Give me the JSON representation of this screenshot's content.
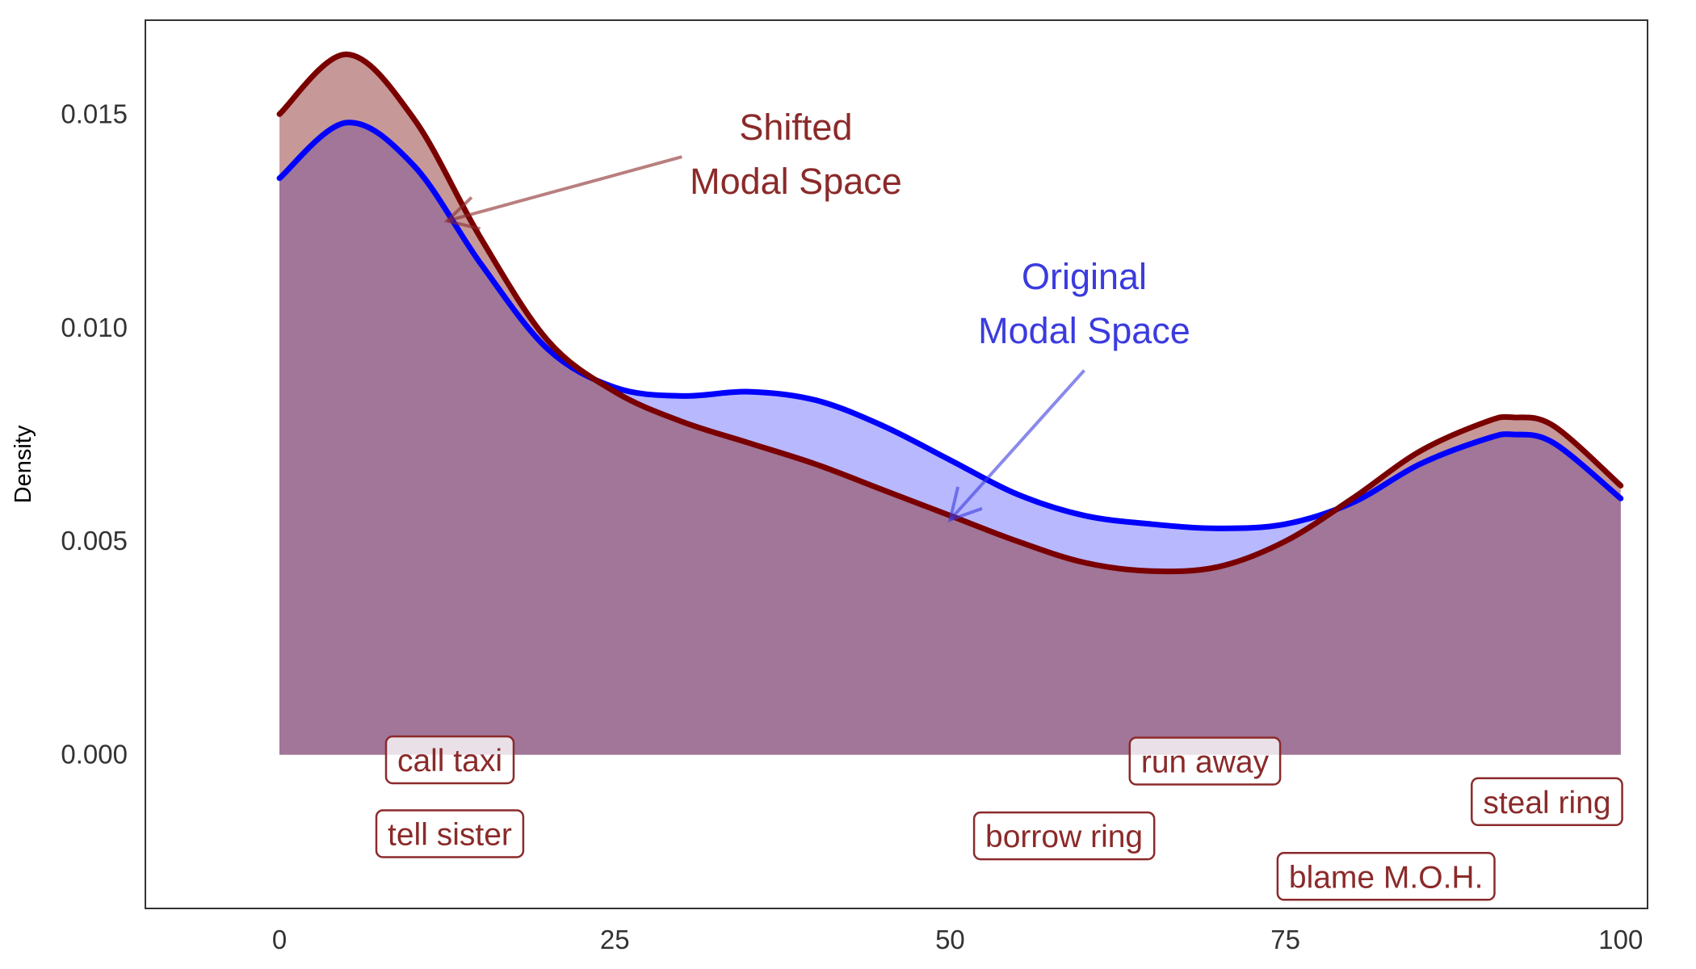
{
  "chart_data": {
    "type": "area",
    "title": "",
    "xlabel": "",
    "ylabel": "Density",
    "xlim": [
      -10,
      102
    ],
    "ylim": [
      -0.0036,
      0.0172
    ],
    "x_ticks": [
      0,
      25,
      50,
      75,
      100
    ],
    "x_tick_labels": [
      "0",
      "25",
      "50",
      "75",
      "100"
    ],
    "y_ticks": [
      0,
      0.005,
      0.01,
      0.015
    ],
    "y_tick_labels": [
      "0.000",
      "0.005",
      "0.010",
      "0.015"
    ],
    "grid": false,
    "x": [
      0,
      5,
      10,
      15,
      20,
      25,
      30,
      35,
      40,
      45,
      50,
      55,
      60,
      65,
      70,
      75,
      80,
      85,
      90,
      92,
      95,
      100
    ],
    "series": [
      {
        "name": "original",
        "color": "#0000ff",
        "fill": "#b8b8ff",
        "values": [
          0.0135,
          0.0148,
          0.0138,
          0.0115,
          0.0095,
          0.0086,
          0.0084,
          0.0085,
          0.0083,
          0.0077,
          0.0069,
          0.0061,
          0.0056,
          0.0054,
          0.0053,
          0.0054,
          0.0059,
          0.0068,
          0.0074,
          0.0075,
          0.0073,
          0.006
        ]
      },
      {
        "name": "shifted",
        "color": "#7a0000",
        "fill": "#c69898",
        "values": [
          0.015,
          0.0164,
          0.0149,
          0.0121,
          0.0097,
          0.0085,
          0.0078,
          0.0073,
          0.0068,
          0.0062,
          0.0056,
          0.005,
          0.0045,
          0.0043,
          0.0044,
          0.005,
          0.006,
          0.0071,
          0.0078,
          0.0079,
          0.0077,
          0.0063
        ]
      }
    ],
    "overlap_fill": "#a17698",
    "annotations": [
      {
        "id": "shifted",
        "lines": [
          "Shifted",
          "Modal Space"
        ],
        "color": "#8b2a2a",
        "text_x": 38.5,
        "text_y": 0.0144,
        "arrow_from": [
          30,
          0.014
        ],
        "arrow_to": [
          12.5,
          0.0125
        ]
      },
      {
        "id": "original",
        "lines": [
          "Original",
          "Modal Space"
        ],
        "color": "#3b3bdf",
        "text_x": 60,
        "text_y": 0.0109,
        "arrow_from": [
          60,
          0.009
        ],
        "arrow_to": [
          50,
          0.0055
        ]
      }
    ],
    "point_labels": [
      {
        "text": "call taxi",
        "x": 12.7,
        "y": -0.00012
      },
      {
        "text": "tell sister",
        "x": 12.7,
        "y": -0.00185
      },
      {
        "text": "run away",
        "x": 69,
        "y": -0.00015
      },
      {
        "text": "borrow ring",
        "x": 58.5,
        "y": -0.0019
      },
      {
        "text": "steal ring",
        "x": 94.5,
        "y": -0.0011
      },
      {
        "text": "blame M.O.H.",
        "x": 82.5,
        "y": -0.00285
      }
    ],
    "label_color": "#8b2a2a"
  }
}
